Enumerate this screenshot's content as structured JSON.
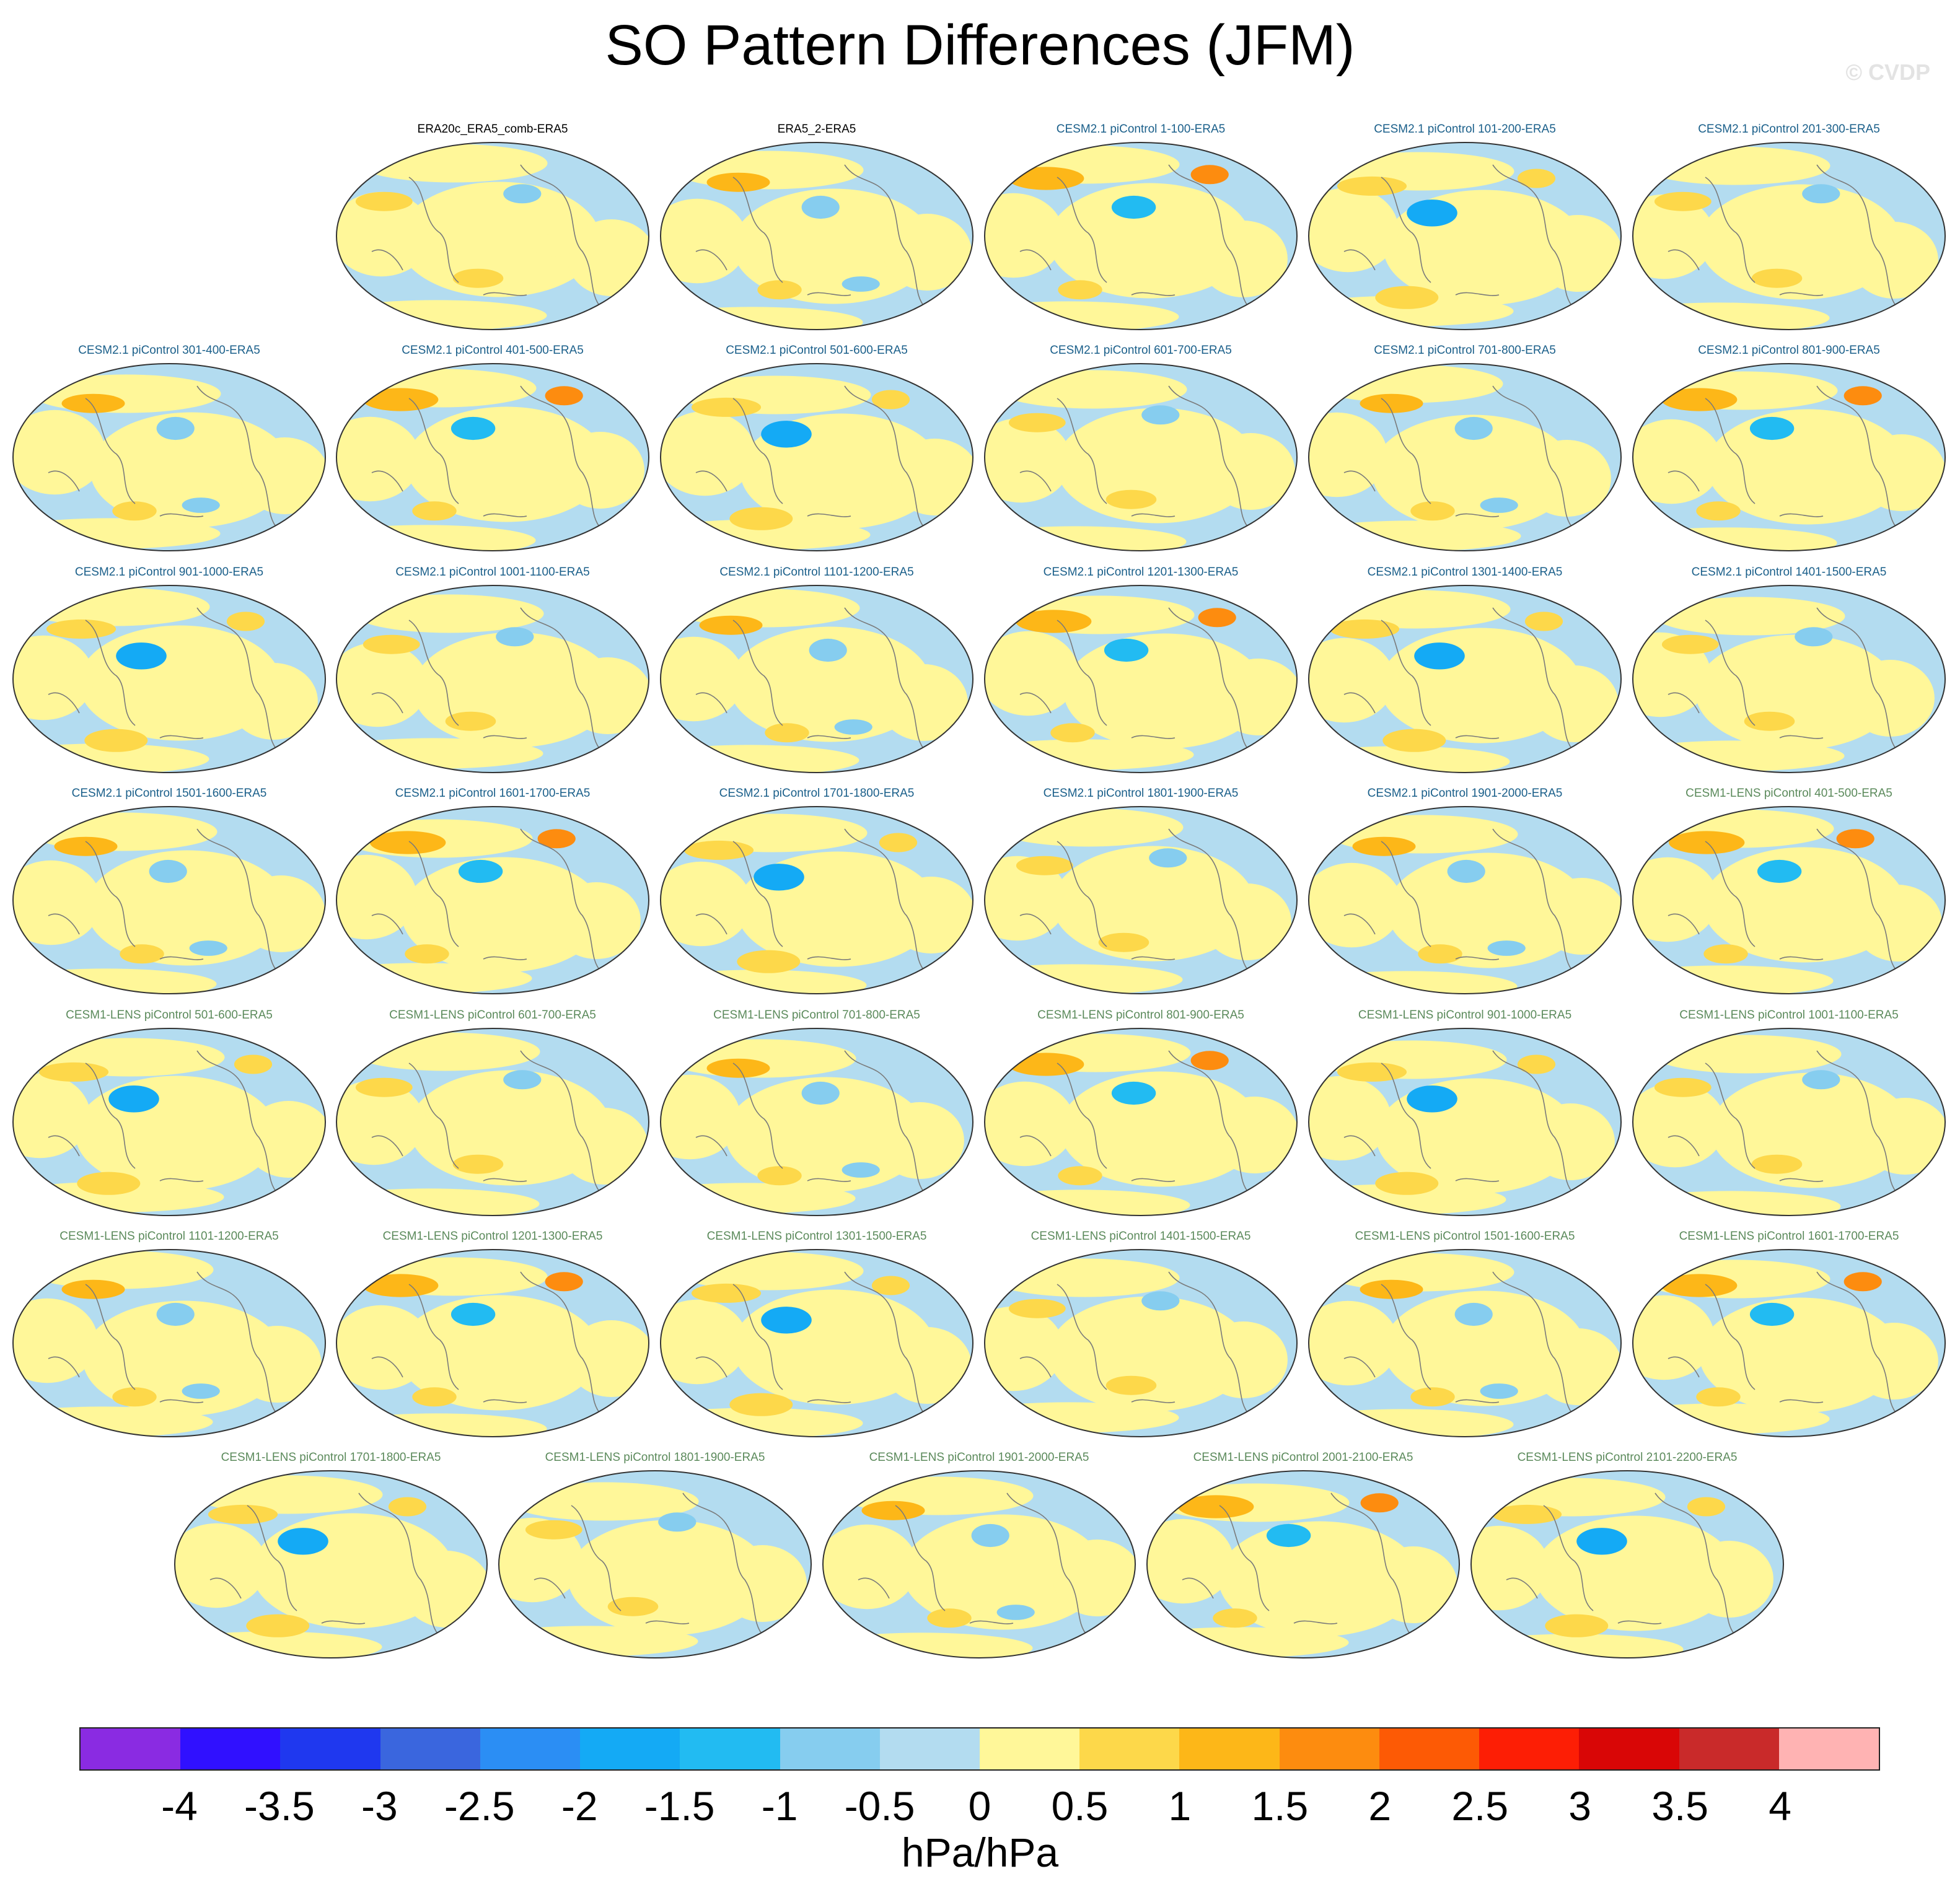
{
  "title": "SO Pattern Differences (JFM)",
  "watermark": "© CVDP",
  "colorbar": {
    "units": "hPa/hPa",
    "tick_labels": [
      "-4",
      "-3.5",
      "-3",
      "-2.5",
      "-2",
      "-1.5",
      "-1",
      "-0.5",
      "0",
      "0.5",
      "1",
      "1.5",
      "2",
      "2.5",
      "3",
      "3.5",
      "4"
    ],
    "colors": [
      "#8a2be2",
      "#3010ff",
      "#1f38ef",
      "#3a66de",
      "#2b8ef4",
      "#14aaf5",
      "#22bbf2",
      "#86cdef",
      "#b3dcf0",
      "#fff799",
      "#fdd84a",
      "#fdb718",
      "#fd8c0f",
      "#fd5a05",
      "#fd1e05",
      "#d90606",
      "#c92a2a",
      "#ffb3b3"
    ]
  },
  "label_colors": {
    "obs": "#000000",
    "cesm2": "#1a5f8a",
    "cesm1": "#5b8a5b"
  },
  "rows": [
    [
      {
        "label": "ERA20c_ERA5_comb-ERA5",
        "group": "obs"
      },
      {
        "label": "ERA5_2-ERA5",
        "group": "obs"
      },
      {
        "label": "CESM2.1 piControl 1-100-ERA5",
        "group": "cesm2"
      },
      {
        "label": "CESM2.1 piControl 101-200-ERA5",
        "group": "cesm2"
      },
      {
        "label": "CESM2.1 piControl 201-300-ERA5",
        "group": "cesm2"
      }
    ],
    [
      {
        "label": "CESM2.1 piControl 301-400-ERA5",
        "group": "cesm2"
      },
      {
        "label": "CESM2.1 piControl 401-500-ERA5",
        "group": "cesm2"
      },
      {
        "label": "CESM2.1 piControl 501-600-ERA5",
        "group": "cesm2"
      },
      {
        "label": "CESM2.1 piControl 601-700-ERA5",
        "group": "cesm2"
      },
      {
        "label": "CESM2.1 piControl 701-800-ERA5",
        "group": "cesm2"
      },
      {
        "label": "CESM2.1 piControl 801-900-ERA5",
        "group": "cesm2"
      }
    ],
    [
      {
        "label": "CESM2.1 piControl 901-1000-ERA5",
        "group": "cesm2"
      },
      {
        "label": "CESM2.1 piControl 1001-1100-ERA5",
        "group": "cesm2"
      },
      {
        "label": "CESM2.1 piControl 1101-1200-ERA5",
        "group": "cesm2"
      },
      {
        "label": "CESM2.1 piControl 1201-1300-ERA5",
        "group": "cesm2"
      },
      {
        "label": "CESM2.1 piControl 1301-1400-ERA5",
        "group": "cesm2"
      },
      {
        "label": "CESM2.1 piControl 1401-1500-ERA5",
        "group": "cesm2"
      }
    ],
    [
      {
        "label": "CESM2.1 piControl 1501-1600-ERA5",
        "group": "cesm2"
      },
      {
        "label": "CESM2.1 piControl 1601-1700-ERA5",
        "group": "cesm2"
      },
      {
        "label": "CESM2.1 piControl 1701-1800-ERA5",
        "group": "cesm2"
      },
      {
        "label": "CESM2.1 piControl 1801-1900-ERA5",
        "group": "cesm2"
      },
      {
        "label": "CESM2.1 piControl 1901-2000-ERA5",
        "group": "cesm2"
      },
      {
        "label": "CESM1-LENS piControl 401-500-ERA5",
        "group": "cesm1"
      }
    ],
    [
      {
        "label": "CESM1-LENS piControl 501-600-ERA5",
        "group": "cesm1"
      },
      {
        "label": "CESM1-LENS piControl 601-700-ERA5",
        "group": "cesm1"
      },
      {
        "label": "CESM1-LENS piControl 701-800-ERA5",
        "group": "cesm1"
      },
      {
        "label": "CESM1-LENS piControl 801-900-ERA5",
        "group": "cesm1"
      },
      {
        "label": "CESM1-LENS piControl 901-1000-ERA5",
        "group": "cesm1"
      },
      {
        "label": "CESM1-LENS piControl 1001-1100-ERA5",
        "group": "cesm1"
      }
    ],
    [
      {
        "label": "CESM1-LENS piControl 1101-1200-ERA5",
        "group": "cesm1"
      },
      {
        "label": "CESM1-LENS piControl 1201-1300-ERA5",
        "group": "cesm1"
      },
      {
        "label": "CESM1-LENS piControl 1301-1500-ERA5",
        "group": "cesm1"
      },
      {
        "label": "CESM1-LENS piControl 1401-1500-ERA5",
        "group": "cesm1"
      },
      {
        "label": "CESM1-LENS piControl 1501-1600-ERA5",
        "group": "cesm1"
      },
      {
        "label": "CESM1-LENS piControl 1601-1700-ERA5",
        "group": "cesm1"
      }
    ],
    [
      {
        "label": "CESM1-LENS piControl 1701-1800-ERA5",
        "group": "cesm1"
      },
      {
        "label": "CESM1-LENS piControl 1801-1900-ERA5",
        "group": "cesm1"
      },
      {
        "label": "CESM1-LENS piControl 1901-2000-ERA5",
        "group": "cesm1"
      },
      {
        "label": "CESM1-LENS piControl 2001-2100-ERA5",
        "group": "cesm1"
      },
      {
        "label": "CESM1-LENS piControl 2101-2200-ERA5",
        "group": "cesm1"
      }
    ]
  ]
}
